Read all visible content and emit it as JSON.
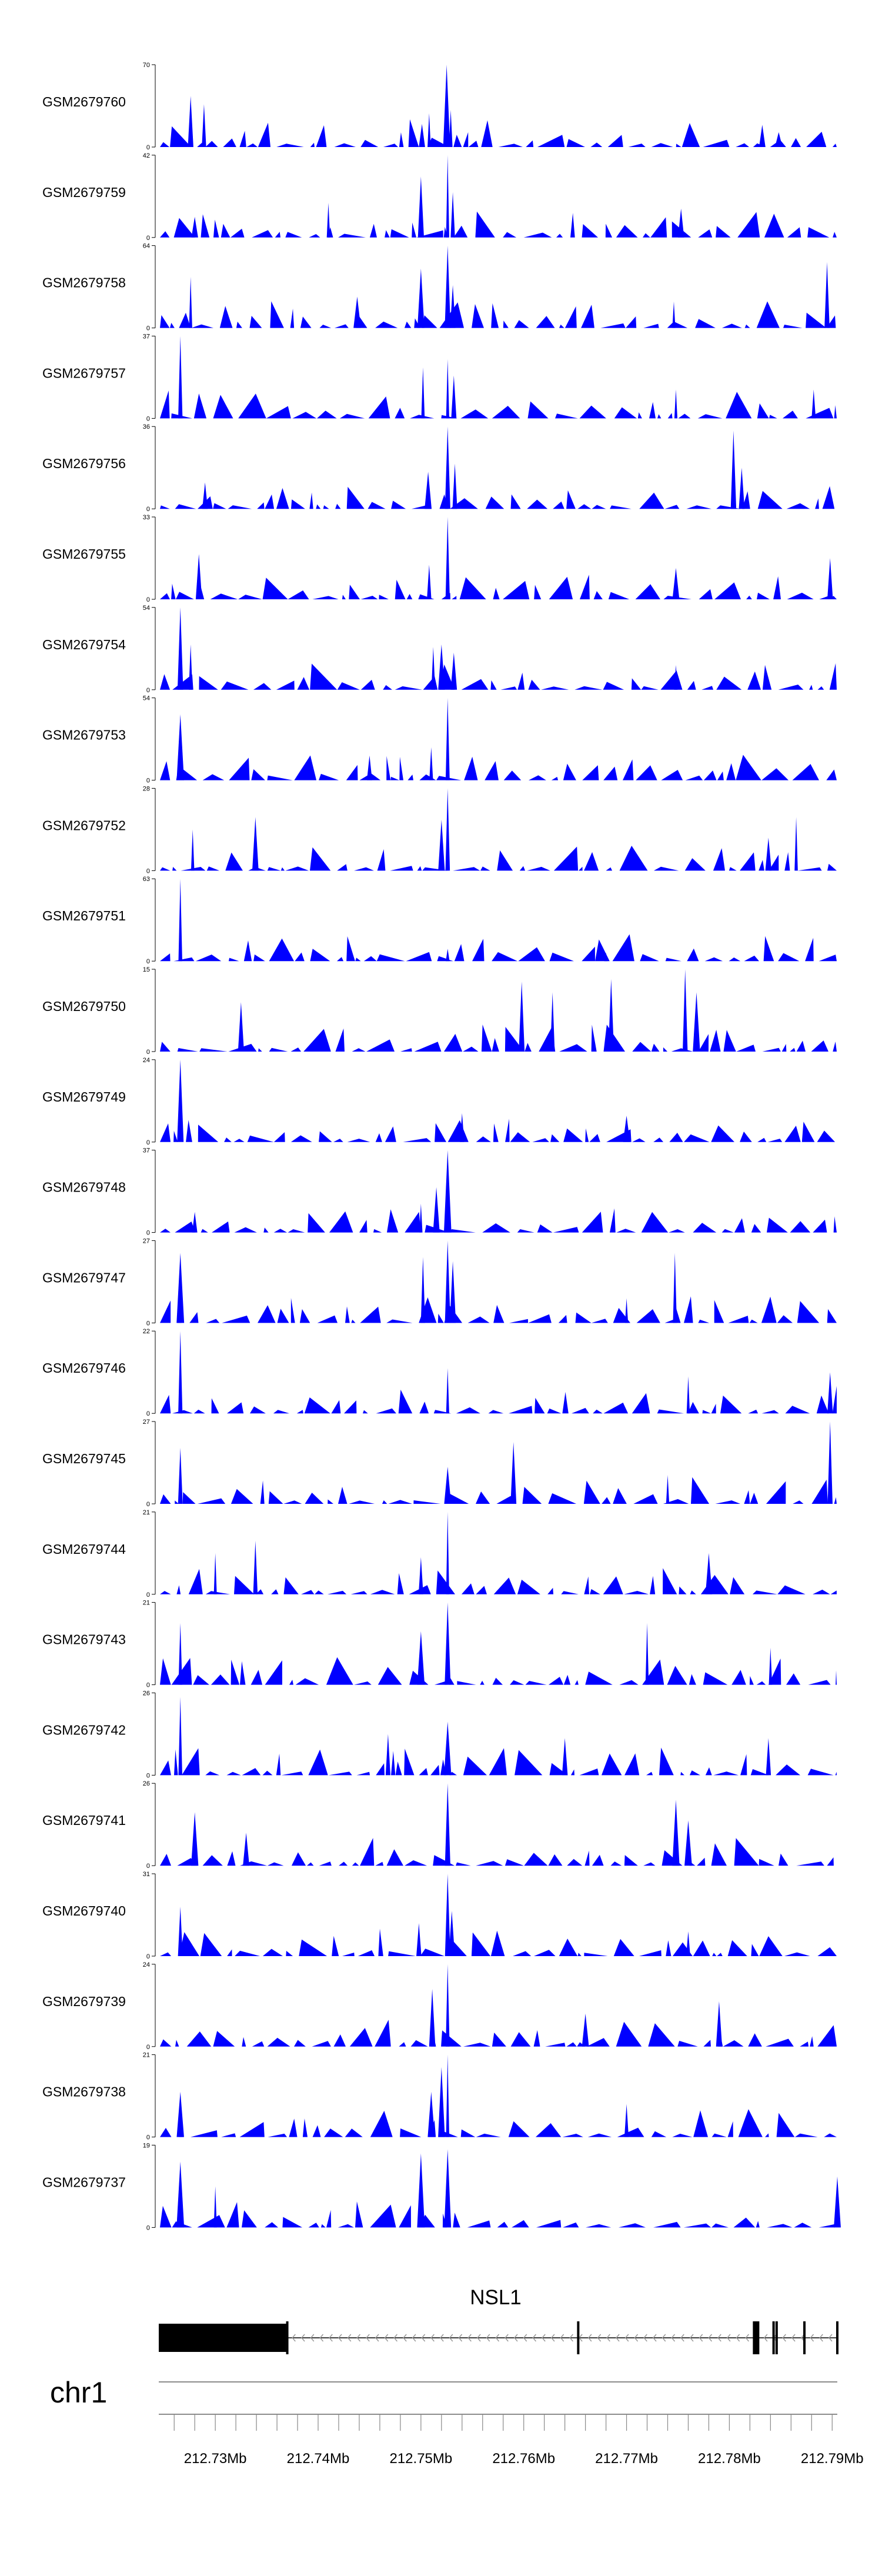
{
  "chart_data": {
    "type": "area",
    "chromosome": "chr1",
    "region_mb": [
      212.7245,
      212.7905
    ],
    "tracks": [
      {
        "name": "GSM2679760",
        "ymax": "70",
        "ylim": [
          0,
          70
        ],
        "seed": 11,
        "peaks": [
          {
            "x": 212.7276,
            "h": 0.62
          },
          {
            "x": 212.7289,
            "h": 0.52
          },
          {
            "x": 212.7501,
            "h": 0.28
          },
          {
            "x": 212.7508,
            "h": 0.41
          },
          {
            "x": 212.7525,
            "h": 1.0
          },
          {
            "x": 212.7529,
            "h": 0.45
          },
          {
            "x": 212.7832,
            "h": 0.27
          },
          {
            "x": 212.7848,
            "h": 0.18
          }
        ]
      },
      {
        "name": "GSM2679759",
        "ymax": "42",
        "ylim": [
          0,
          42
        ],
        "seed": 23,
        "peaks": [
          {
            "x": 212.741,
            "h": 0.42
          },
          {
            "x": 212.75,
            "h": 0.74
          },
          {
            "x": 212.7526,
            "h": 1.0
          },
          {
            "x": 212.7531,
            "h": 0.55
          },
          {
            "x": 212.7753,
            "h": 0.35
          },
          {
            "x": 212.728,
            "h": 0.25
          }
        ]
      },
      {
        "name": "GSM2679758",
        "ymax": "64",
        "ylim": [
          0,
          64
        ],
        "seed": 37,
        "peaks": [
          {
            "x": 212.7276,
            "h": 0.62
          },
          {
            "x": 212.7438,
            "h": 0.38
          },
          {
            "x": 212.75,
            "h": 0.72
          },
          {
            "x": 212.7526,
            "h": 1.0
          },
          {
            "x": 212.7531,
            "h": 0.52
          },
          {
            "x": 212.7895,
            "h": 0.8
          },
          {
            "x": 212.7746,
            "h": 0.32
          }
        ]
      },
      {
        "name": "GSM2679757",
        "ymax": "37",
        "ylim": [
          0,
          37
        ],
        "seed": 41,
        "peaks": [
          {
            "x": 212.7266,
            "h": 1.0
          },
          {
            "x": 212.7502,
            "h": 0.62
          },
          {
            "x": 212.7526,
            "h": 0.72
          },
          {
            "x": 212.7532,
            "h": 0.52
          },
          {
            "x": 212.7748,
            "h": 0.35
          },
          {
            "x": 212.7882,
            "h": 0.35
          }
        ]
      },
      {
        "name": "GSM2679756",
        "ymax": "36",
        "ylim": [
          0,
          36
        ],
        "seed": 53,
        "peaks": [
          {
            "x": 212.7526,
            "h": 1.0
          },
          {
            "x": 212.7533,
            "h": 0.55
          },
          {
            "x": 212.7507,
            "h": 0.45
          },
          {
            "x": 212.7804,
            "h": 0.95
          },
          {
            "x": 212.7812,
            "h": 0.5
          },
          {
            "x": 212.729,
            "h": 0.32
          }
        ]
      },
      {
        "name": "GSM2679755",
        "ymax": "33",
        "ylim": [
          0,
          33
        ],
        "seed": 67,
        "peaks": [
          {
            "x": 212.7526,
            "h": 1.0
          },
          {
            "x": 212.7284,
            "h": 0.55
          },
          {
            "x": 212.7508,
            "h": 0.42
          },
          {
            "x": 212.7748,
            "h": 0.38
          },
          {
            "x": 212.7898,
            "h": 0.5
          }
        ]
      },
      {
        "name": "GSM2679754",
        "ymax": "54",
        "ylim": [
          0,
          54
        ],
        "seed": 71,
        "peaks": [
          {
            "x": 212.7266,
            "h": 1.0
          },
          {
            "x": 212.7276,
            "h": 0.55
          },
          {
            "x": 212.7512,
            "h": 0.52
          },
          {
            "x": 212.752,
            "h": 0.55
          },
          {
            "x": 212.7532,
            "h": 0.45
          },
          {
            "x": 212.7748,
            "h": 0.3
          }
        ]
      },
      {
        "name": "GSM2679753",
        "ymax": "54",
        "ylim": [
          0,
          54
        ],
        "seed": 83,
        "peaks": [
          {
            "x": 212.7266,
            "h": 0.8
          },
          {
            "x": 212.7526,
            "h": 1.0
          },
          {
            "x": 212.751,
            "h": 0.4
          },
          {
            "x": 212.745,
            "h": 0.3
          }
        ]
      },
      {
        "name": "GSM2679752",
        "ymax": "28",
        "ylim": [
          0,
          28
        ],
        "seed": 97,
        "peaks": [
          {
            "x": 212.7526,
            "h": 1.0
          },
          {
            "x": 212.752,
            "h": 0.62
          },
          {
            "x": 212.7339,
            "h": 0.65
          },
          {
            "x": 212.7278,
            "h": 0.5
          },
          {
            "x": 212.7865,
            "h": 0.65
          },
          {
            "x": 212.7838,
            "h": 0.4
          }
        ]
      },
      {
        "name": "GSM2679751",
        "ymax": "63",
        "ylim": [
          0,
          63
        ],
        "seed": 101,
        "peaks": [
          {
            "x": 212.7266,
            "h": 1.0
          },
          {
            "x": 212.7526,
            "h": 0.15
          },
          {
            "x": 212.768,
            "h": 0.1
          }
        ]
      },
      {
        "name": "GSM2679750",
        "ymax": "15",
        "ylim": [
          0,
          15
        ],
        "seed": 113,
        "peaks": [
          {
            "x": 212.7598,
            "h": 0.85
          },
          {
            "x": 212.7628,
            "h": 0.72
          },
          {
            "x": 212.7685,
            "h": 0.88
          },
          {
            "x": 212.7757,
            "h": 1.0
          },
          {
            "x": 212.7768,
            "h": 0.72
          },
          {
            "x": 212.7325,
            "h": 0.6
          }
        ]
      },
      {
        "name": "GSM2679749",
        "ymax": "24",
        "ylim": [
          0,
          24
        ],
        "seed": 127,
        "peaks": [
          {
            "x": 212.7266,
            "h": 1.0
          },
          {
            "x": 212.754,
            "h": 0.35
          },
          {
            "x": 212.77,
            "h": 0.32
          }
        ]
      },
      {
        "name": "GSM2679748",
        "ymax": "37",
        "ylim": [
          0,
          37
        ],
        "seed": 131,
        "peaks": [
          {
            "x": 212.7526,
            "h": 1.0
          },
          {
            "x": 212.7515,
            "h": 0.55
          },
          {
            "x": 212.75,
            "h": 0.35
          },
          {
            "x": 212.728,
            "h": 0.25
          }
        ]
      },
      {
        "name": "GSM2679747",
        "ymax": "27",
        "ylim": [
          0,
          27
        ],
        "seed": 139,
        "peaks": [
          {
            "x": 212.7266,
            "h": 0.85
          },
          {
            "x": 212.7526,
            "h": 1.0
          },
          {
            "x": 212.7531,
            "h": 0.75
          },
          {
            "x": 212.7502,
            "h": 0.8
          },
          {
            "x": 212.7747,
            "h": 0.85
          },
          {
            "x": 212.77,
            "h": 0.3
          }
        ]
      },
      {
        "name": "GSM2679746",
        "ymax": "22",
        "ylim": [
          0,
          22
        ],
        "seed": 149,
        "peaks": [
          {
            "x": 212.7266,
            "h": 1.0
          },
          {
            "x": 212.7526,
            "h": 0.55
          },
          {
            "x": 212.7898,
            "h": 0.5
          },
          {
            "x": 212.776,
            "h": 0.45
          }
        ]
      },
      {
        "name": "GSM2679745",
        "ymax": "27",
        "ylim": [
          0,
          27
        ],
        "seed": 157,
        "peaks": [
          {
            "x": 212.7266,
            "h": 0.68
          },
          {
            "x": 212.759,
            "h": 0.75
          },
          {
            "x": 212.7526,
            "h": 0.45
          },
          {
            "x": 212.7898,
            "h": 1.0
          },
          {
            "x": 212.774,
            "h": 0.35
          }
        ]
      },
      {
        "name": "GSM2679744",
        "ymax": "21",
        "ylim": [
          0,
          21
        ],
        "seed": 163,
        "peaks": [
          {
            "x": 212.7526,
            "h": 1.0
          },
          {
            "x": 212.7339,
            "h": 0.65
          },
          {
            "x": 212.73,
            "h": 0.5
          },
          {
            "x": 212.75,
            "h": 0.45
          },
          {
            "x": 212.778,
            "h": 0.5
          }
        ]
      },
      {
        "name": "GSM2679743",
        "ymax": "21",
        "ylim": [
          0,
          21
        ],
        "seed": 173,
        "peaks": [
          {
            "x": 212.7526,
            "h": 1.0
          },
          {
            "x": 212.772,
            "h": 0.75
          },
          {
            "x": 212.75,
            "h": 0.65
          },
          {
            "x": 212.7266,
            "h": 0.75
          },
          {
            "x": 212.784,
            "h": 0.45
          }
        ]
      },
      {
        "name": "GSM2679742",
        "ymax": "26",
        "ylim": [
          0,
          26
        ],
        "seed": 181,
        "peaks": [
          {
            "x": 212.7266,
            "h": 0.95
          },
          {
            "x": 212.7526,
            "h": 0.65
          },
          {
            "x": 212.7468,
            "h": 0.5
          },
          {
            "x": 212.764,
            "h": 0.45
          },
          {
            "x": 212.7838,
            "h": 0.45
          }
        ]
      },
      {
        "name": "GSM2679741",
        "ymax": "26",
        "ylim": [
          0,
          26
        ],
        "seed": 191,
        "peaks": [
          {
            "x": 212.7526,
            "h": 1.0
          },
          {
            "x": 212.728,
            "h": 0.65
          },
          {
            "x": 212.7748,
            "h": 0.8
          },
          {
            "x": 212.776,
            "h": 0.55
          },
          {
            "x": 212.733,
            "h": 0.4
          }
        ]
      },
      {
        "name": "GSM2679740",
        "ymax": "31",
        "ylim": [
          0,
          31
        ],
        "seed": 197,
        "peaks": [
          {
            "x": 212.7526,
            "h": 1.0
          },
          {
            "x": 212.7266,
            "h": 0.6
          },
          {
            "x": 212.753,
            "h": 0.55
          },
          {
            "x": 212.7498,
            "h": 0.4
          },
          {
            "x": 212.776,
            "h": 0.3
          }
        ]
      },
      {
        "name": "GSM2679739",
        "ymax": "24",
        "ylim": [
          0,
          24
        ],
        "seed": 211,
        "peaks": [
          {
            "x": 212.7526,
            "h": 1.0
          },
          {
            "x": 212.7511,
            "h": 0.7
          },
          {
            "x": 212.779,
            "h": 0.55
          },
          {
            "x": 212.766,
            "h": 0.4
          }
        ]
      },
      {
        "name": "GSM2679738",
        "ymax": "21",
        "ylim": [
          0,
          21
        ],
        "seed": 223,
        "peaks": [
          {
            "x": 212.7526,
            "h": 1.0
          },
          {
            "x": 212.752,
            "h": 0.85
          },
          {
            "x": 212.751,
            "h": 0.55
          },
          {
            "x": 212.7266,
            "h": 0.55
          },
          {
            "x": 212.77,
            "h": 0.4
          }
        ]
      },
      {
        "name": "GSM2679737",
        "ymax": "19",
        "ylim": [
          0,
          19
        ],
        "seed": 227,
        "peaks": [
          {
            "x": 212.7266,
            "h": 0.8
          },
          {
            "x": 212.75,
            "h": 0.9
          },
          {
            "x": 212.7526,
            "h": 0.95
          },
          {
            "x": 212.7905,
            "h": 0.62
          },
          {
            "x": 212.73,
            "h": 0.5
          }
        ]
      }
    ],
    "gene": {
      "name": "NSL1",
      "strand": "-",
      "start": 212.7245,
      "end": 212.7905,
      "thick_exon": [
        212.7245,
        212.7369
      ],
      "exons": [
        212.737,
        212.7653,
        212.7824,
        212.7826,
        212.7828,
        212.7843,
        212.7846,
        212.7873,
        212.7905
      ]
    },
    "axis": {
      "ticks": [
        "212.73Mb",
        "212.74Mb",
        "212.75Mb",
        "212.76Mb",
        "212.77Mb",
        "212.78Mb",
        "212.79Mb"
      ],
      "tick_values": [
        212.73,
        212.74,
        212.75,
        212.76,
        212.77,
        212.78,
        212.79
      ],
      "minor_step": 0.002
    },
    "colors": {
      "fill": "#0000ff",
      "axis": "#000000",
      "gene": "#000000",
      "arrow": "#999999"
    }
  }
}
